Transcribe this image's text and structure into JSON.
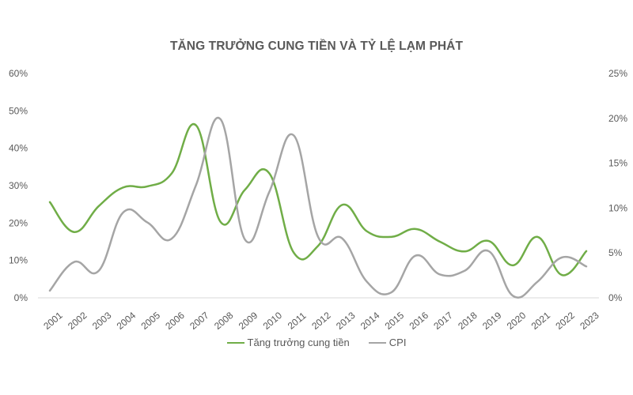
{
  "chart_data": {
    "type": "line",
    "title": "TĂNG TRƯỞNG CUNG TIỀN VÀ TỶ LỆ LẠM PHÁT",
    "xlabel": "",
    "ylabel": "",
    "x": [
      "2001",
      "2002",
      "2003",
      "2004",
      "2005",
      "2006",
      "2007",
      "2008",
      "2009",
      "2010",
      "2011",
      "2012",
      "2013",
      "2014",
      "2015",
      "2016",
      "2017",
      "2018",
      "2019",
      "2020",
      "2021",
      "2022",
      "2023"
    ],
    "series": [
      {
        "name": "Tăng trưởng cung tiền",
        "axis": "left",
        "color": "#70AD47",
        "values": [
          25.6,
          17.6,
          24.5,
          29.5,
          29.8,
          33.3,
          46.1,
          20.3,
          28.9,
          33.3,
          12.1,
          13.9,
          24.9,
          17.8,
          16.3,
          18.4,
          15.0,
          12.4,
          15.2,
          8.7,
          16.3,
          6.1,
          12.5
        ]
      },
      {
        "name": "CPI",
        "axis": "right",
        "color": "#A5A5A5",
        "values": [
          0.8,
          4.0,
          3.0,
          9.5,
          8.4,
          6.6,
          12.6,
          19.9,
          6.5,
          11.8,
          18.1,
          6.8,
          6.6,
          1.8,
          0.6,
          4.7,
          2.6,
          3.0,
          5.2,
          0.2,
          1.8,
          4.5,
          3.5
        ]
      }
    ],
    "left_axis": {
      "ylim": [
        0,
        60
      ],
      "ticks": [
        "0%",
        "10%",
        "20%",
        "30%",
        "40%",
        "50%",
        "60%"
      ]
    },
    "right_axis": {
      "ylim": [
        0,
        25
      ],
      "ticks": [
        "0%",
        "5%",
        "10%",
        "15%",
        "20%",
        "25%"
      ]
    },
    "grid": false,
    "legend_position": "bottom"
  },
  "legend": {
    "items": [
      {
        "label": "Tăng trưởng cung tiền",
        "color": "#70AD47"
      },
      {
        "label": "CPI",
        "color": "#A5A5A5"
      }
    ]
  }
}
